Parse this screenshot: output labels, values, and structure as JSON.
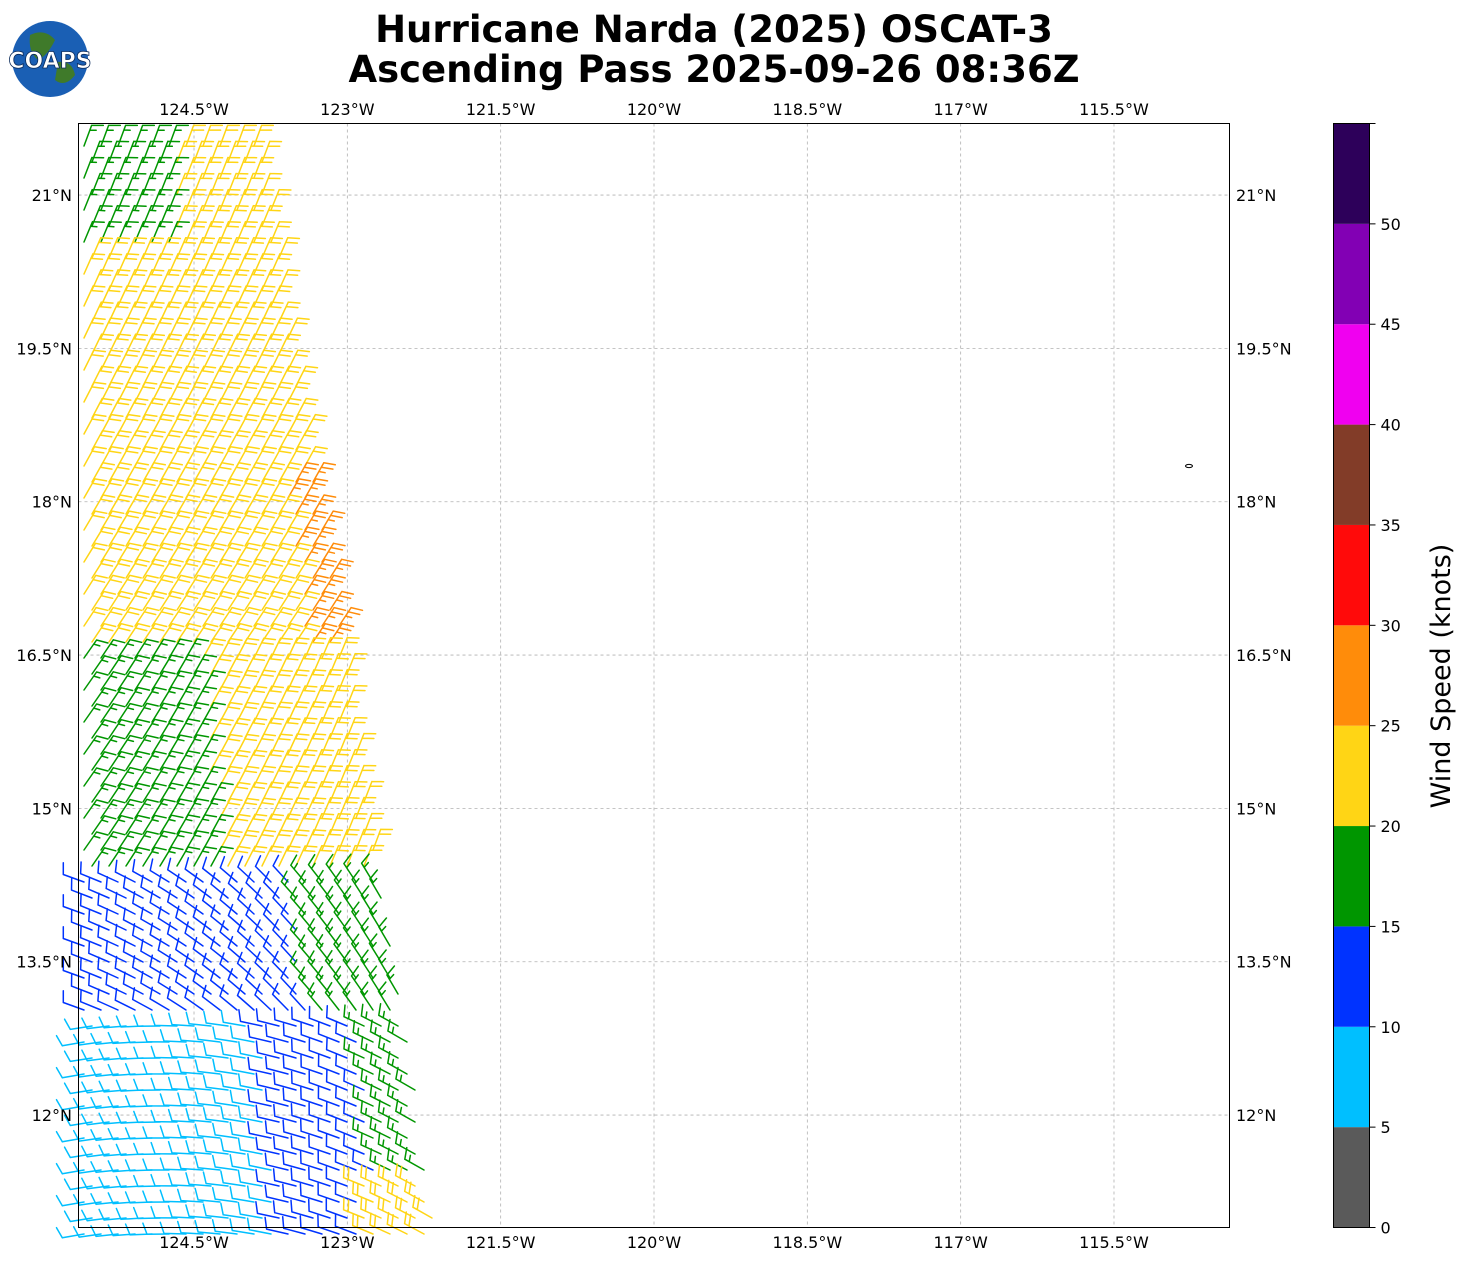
{
  "title_line1": "Hurricane Narda (2025) OSCAT-3",
  "title_line2": "Ascending Pass 2025-09-26 08:36Z",
  "logo_text": "COAPS",
  "map": {
    "lon_ticks": [
      "124.5°W",
      "123°W",
      "121.5°W",
      "120°W",
      "118.5°W",
      "117°W",
      "115.5°W"
    ],
    "lon_values": [
      -124.5,
      -123,
      -121.5,
      -120,
      -118.5,
      -117,
      -115.5
    ],
    "lat_ticks": [
      "21°N",
      "19.5°N",
      "18°N",
      "16.5°N",
      "15°N",
      "13.5°N",
      "12°N"
    ],
    "lat_values": [
      21,
      19.5,
      18,
      16.5,
      15,
      13.5,
      12
    ],
    "lon_range": [
      -125.63,
      -114.37
    ],
    "lat_range": [
      10.9,
      21.7
    ],
    "grid": true
  },
  "colorbar": {
    "label": "Wind Speed (knots)",
    "ticks": [
      "0",
      "5",
      "10",
      "15",
      "20",
      "25",
      "30",
      "35",
      "40",
      "45",
      "50"
    ],
    "bins": [
      {
        "min": 0,
        "max": 5,
        "color": "#5a5a5a"
      },
      {
        "min": 5,
        "max": 10,
        "color": "#00bfff"
      },
      {
        "min": 10,
        "max": 15,
        "color": "#0033ff"
      },
      {
        "min": 15,
        "max": 20,
        "color": "#009600"
      },
      {
        "min": 20,
        "max": 25,
        "color": "#ffd515"
      },
      {
        "min": 25,
        "max": 30,
        "color": "#ff8c0a"
      },
      {
        "min": 30,
        "max": 35,
        "color": "#ff0a0a"
      },
      {
        "min": 35,
        "max": 40,
        "color": "#823c28"
      },
      {
        "min": 40,
        "max": 45,
        "color": "#f000f0"
      },
      {
        "min": 45,
        "max": 50,
        "color": "#8200b4"
      },
      {
        "min": 50,
        "max": 55,
        "color": "#2d005a"
      }
    ]
  }
}
